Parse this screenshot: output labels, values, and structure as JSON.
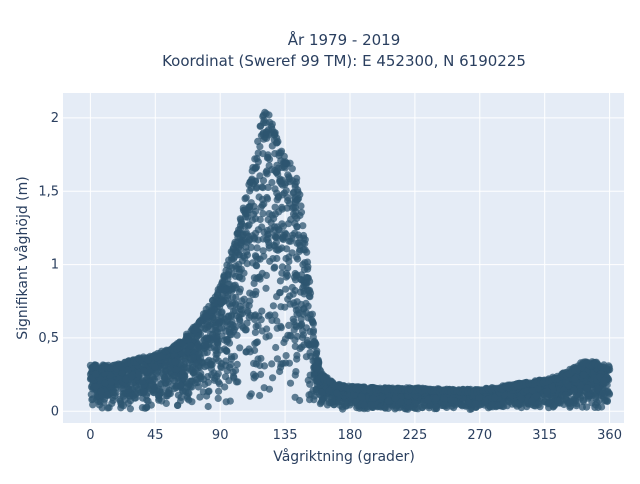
{
  "chart_data": {
    "type": "scatter",
    "title_line1": "År 1979 - 2019",
    "title_line2": "Koordinat (Sweref 99 TM): E 452300, N 6190225",
    "xlabel": "Vågriktning (grader)",
    "ylabel": "Signifikant våghöjd (m)",
    "xlim": [
      -19,
      370
    ],
    "ylim": [
      -0.08,
      2.17
    ],
    "x_ticks": [
      0,
      45,
      90,
      135,
      180,
      225,
      270,
      315,
      360
    ],
    "x_tick_labels": [
      "0",
      "45",
      "90",
      "135",
      "180",
      "225",
      "270",
      "315",
      "360"
    ],
    "y_ticks": [
      0,
      0.5,
      1,
      1.5,
      2
    ],
    "y_tick_labels": [
      "0",
      "0,5",
      "1",
      "1,5",
      "2"
    ],
    "grid": true,
    "plot_background": "#e5ecf6",
    "grid_color": "#ffffff",
    "marker_color": "#2e5570",
    "marker_opacity": 0.75,
    "series": [
      {
        "envelope_x": [
          0,
          15,
          30,
          45,
          60,
          75,
          90,
          100,
          110,
          115,
          120,
          125,
          130,
          135,
          140,
          145,
          150,
          155,
          160,
          170,
          180,
          200,
          225,
          250,
          270,
          290,
          310,
          320,
          330,
          340,
          350,
          360
        ],
        "envelope_max_y": [
          0.32,
          0.3,
          0.35,
          0.38,
          0.45,
          0.6,
          0.85,
          1.15,
          1.55,
          1.85,
          2.05,
          2.0,
          1.85,
          1.75,
          1.7,
          1.5,
          1.1,
          0.55,
          0.25,
          0.18,
          0.16,
          0.15,
          0.15,
          0.14,
          0.14,
          0.17,
          0.2,
          0.22,
          0.26,
          0.33,
          0.33,
          0.3
        ]
      }
    ]
  }
}
